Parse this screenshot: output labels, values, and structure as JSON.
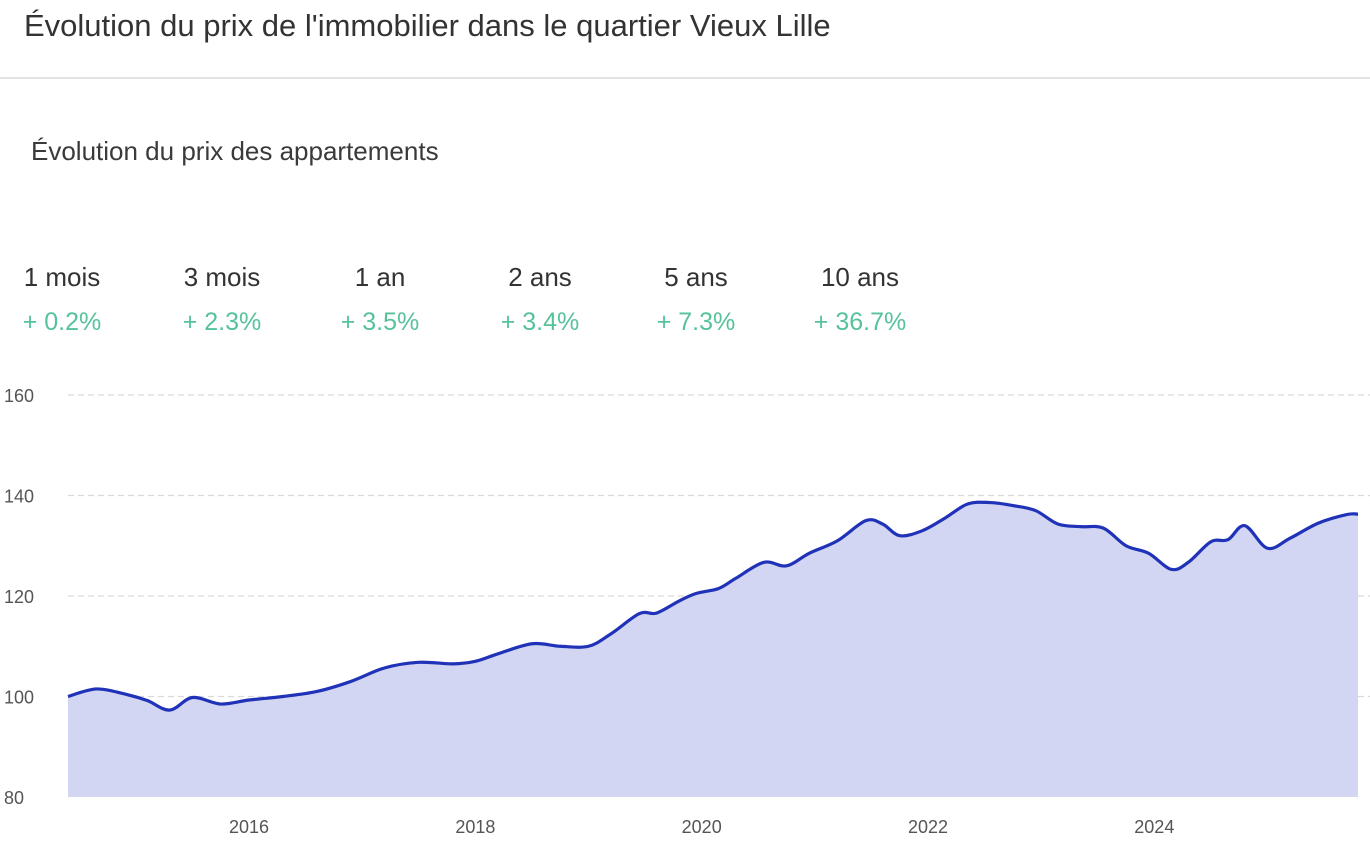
{
  "header": {
    "title": "Évolution du prix de l'immobilier dans le quartier Vieux Lille"
  },
  "section": {
    "title": "Évolution du prix des appartements"
  },
  "periods": [
    {
      "label": "1 mois",
      "value": "+ 0.2%"
    },
    {
      "label": "3 mois",
      "value": "+ 2.3%"
    },
    {
      "label": "1 an",
      "value": "+ 3.5%"
    },
    {
      "label": "2 ans",
      "value": "+ 3.4%"
    },
    {
      "label": "5 ans",
      "value": "+ 7.3%"
    },
    {
      "label": "10 ans",
      "value": "+ 36.7%"
    }
  ],
  "colors": {
    "line": "#1f32b8",
    "fill": "#d2d6f2",
    "positive": "#56c29a",
    "grid": "#d9d9d9"
  },
  "chart_data": {
    "type": "area",
    "title": "Évolution du prix des appartements",
    "xlabel": "",
    "ylabel": "",
    "ylim": [
      80,
      160
    ],
    "xlim": [
      2014.4,
      2025.8
    ],
    "yticks": [
      80,
      100,
      120,
      140,
      160
    ],
    "xticks": [
      2016,
      2018,
      2020,
      2022,
      2024
    ],
    "grid": true,
    "series": [
      {
        "name": "Prix des appartements",
        "x": [
          2014.4,
          2014.65,
          2014.9,
          2015.1,
          2015.3,
          2015.5,
          2015.75,
          2016.0,
          2016.3,
          2016.6,
          2016.9,
          2017.2,
          2017.5,
          2017.8,
          2018.0,
          2018.2,
          2018.5,
          2018.75,
          2019.0,
          2019.2,
          2019.45,
          2019.6,
          2019.8,
          2019.95,
          2020.15,
          2020.3,
          2020.55,
          2020.75,
          2020.95,
          2021.2,
          2021.45,
          2021.6,
          2021.75,
          2021.95,
          2022.15,
          2022.35,
          2022.55,
          2022.75,
          2022.95,
          2023.15,
          2023.35,
          2023.55,
          2023.75,
          2023.95,
          2024.15,
          2024.3,
          2024.5,
          2024.65,
          2024.8,
          2025.0,
          2025.2,
          2025.45,
          2025.7,
          2025.8
        ],
        "values": [
          100,
          101.5,
          100.5,
          99.2,
          97.3,
          99.8,
          98.5,
          99.3,
          100.0,
          101.0,
          103.0,
          105.7,
          106.8,
          106.5,
          107.0,
          108.5,
          110.5,
          110.0,
          110.0,
          112.5,
          116.5,
          116.6,
          119.0,
          120.5,
          121.5,
          123.5,
          126.7,
          126.0,
          128.5,
          131.0,
          135.0,
          134.3,
          132.0,
          133.0,
          135.5,
          138.3,
          138.6,
          138.0,
          137.0,
          134.3,
          133.8,
          133.5,
          130.0,
          128.5,
          125.3,
          126.7,
          130.8,
          131.2,
          134.0,
          129.5,
          131.5,
          134.5,
          136.2,
          136.3
        ]
      }
    ]
  }
}
